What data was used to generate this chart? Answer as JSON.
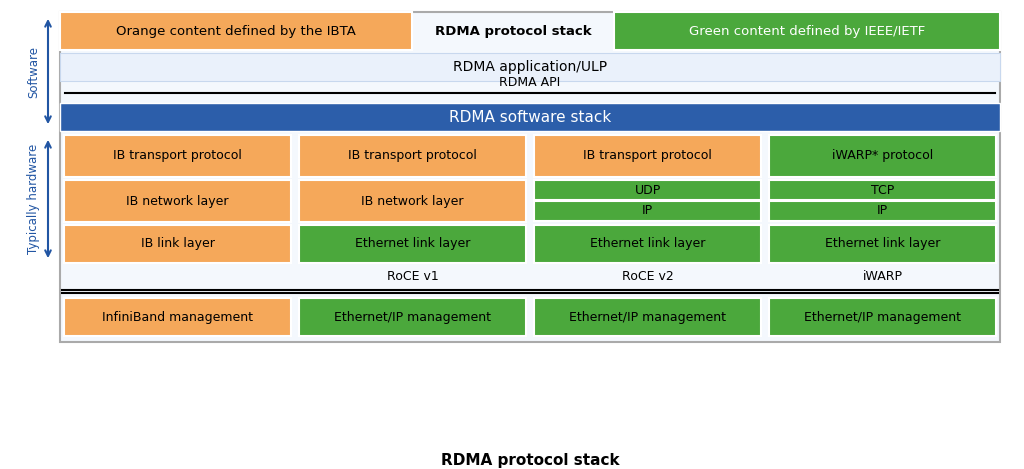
{
  "title": "RDMA protocol stack",
  "colors": {
    "orange": "#F5A85A",
    "green": "#4BA83C",
    "blue_arrow": "#2155A3",
    "light_blue_bg": "#EAF1FB",
    "rdma_sw_blue": "#2C5EAA",
    "border_gray": "#AAAAAA",
    "white": "#FFFFFF",
    "black": "#000000",
    "text_dark": "#1A1A1A"
  },
  "legend_orange_text": "Orange content defined by the IBTA",
  "legend_green_text": "Green content defined by IEEE/IETF",
  "legend_title": "RDMA protocol stack",
  "rdma_app_text": "RDMA application/ULP",
  "rdma_api_text": "RDMA API",
  "rdma_sw_stack_text": "RDMA software stack",
  "software_label": "Software",
  "hardware_label": "Typically hardware",
  "col_labels": [
    "",
    "RoCE v1",
    "RoCE v2",
    "iWARP"
  ],
  "transport_cells": [
    {
      "text": "IB transport protocol",
      "color": "orange"
    },
    {
      "text": "IB transport protocol",
      "color": "orange"
    },
    {
      "text": "IB transport protocol",
      "color": "orange"
    },
    {
      "text": "iWARP* protocol",
      "color": "green"
    }
  ],
  "network_cells": [
    {
      "text": "IB network layer",
      "color": "orange"
    },
    {
      "text": "IB network layer",
      "color": "orange"
    },
    {
      "text": "UDP",
      "color": "green"
    },
    {
      "text": "TCP",
      "color": "green"
    }
  ],
  "network_sub_cells": [
    {
      "text": "",
      "color": "none"
    },
    {
      "text": "",
      "color": "none"
    },
    {
      "text": "IP",
      "color": "green"
    },
    {
      "text": "IP",
      "color": "green"
    }
  ],
  "link_cells": [
    {
      "text": "IB link layer",
      "color": "orange"
    },
    {
      "text": "Ethernet link layer",
      "color": "green"
    },
    {
      "text": "Ethernet link layer",
      "color": "green"
    },
    {
      "text": "Ethernet link layer",
      "color": "green"
    }
  ],
  "mgmt_cells": [
    {
      "text": "InfiniBand management",
      "color": "orange"
    },
    {
      "text": "Ethernet/IP management",
      "color": "green"
    },
    {
      "text": "Ethernet/IP management",
      "color": "green"
    },
    {
      "text": "Ethernet/IP management",
      "color": "green"
    }
  ]
}
